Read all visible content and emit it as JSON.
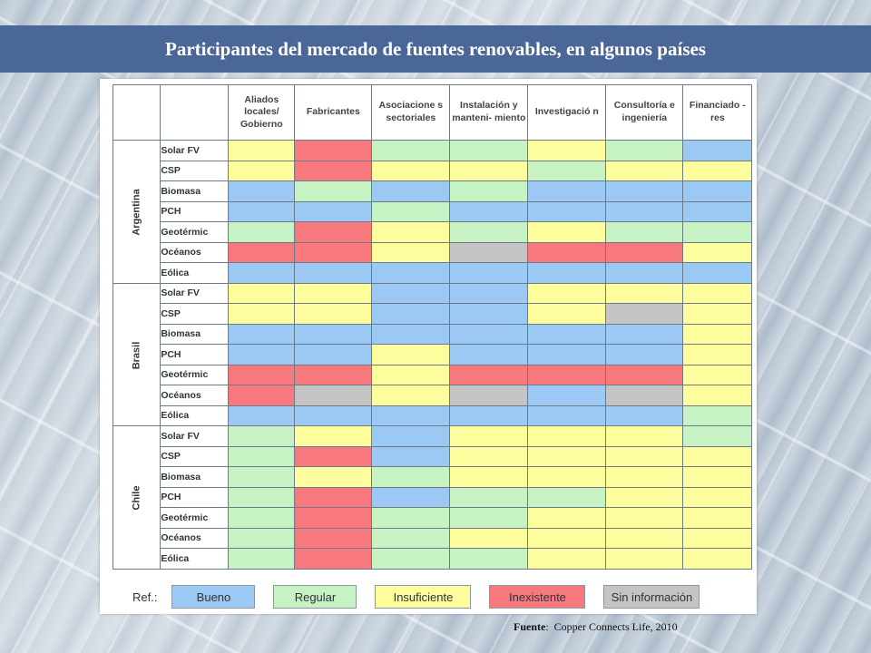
{
  "title": "Participantes del mercado de fuentes renovables, en algunos países",
  "columns": [
    "Aliados locales/ Gobierno",
    "Fabricantes",
    "Asociacione s sectoriales",
    "Instalación y manteni- miento",
    "Investigació n",
    "Consultoría e ingeniería",
    "Financiado -res"
  ],
  "status_colors": {
    "Bueno": "#9cc8f4",
    "Regular": "#c6f2c4",
    "Insuficiente": "#fdfd9e",
    "Inexistente": "#f7797e",
    "Sin información": "#c4c4c4"
  },
  "countries": [
    {
      "name": "Argentina",
      "rows": [
        {
          "tech": "Solar FV",
          "cells": [
            "Insuficiente",
            "Inexistente",
            "Regular",
            "Regular",
            "Insuficiente",
            "Regular",
            "Bueno"
          ]
        },
        {
          "tech": "CSP",
          "cells": [
            "Insuficiente",
            "Inexistente",
            "Insuficiente",
            "Insuficiente",
            "Regular",
            "Insuficiente",
            "Insuficiente"
          ]
        },
        {
          "tech": "Biomasa",
          "cells": [
            "Bueno",
            "Regular",
            "Bueno",
            "Regular",
            "Bueno",
            "Bueno",
            "Bueno"
          ]
        },
        {
          "tech": "PCH",
          "cells": [
            "Bueno",
            "Bueno",
            "Regular",
            "Bueno",
            "Bueno",
            "Bueno",
            "Bueno"
          ]
        },
        {
          "tech": "Geotérmic",
          "cells": [
            "Regular",
            "Inexistente",
            "Insuficiente",
            "Regular",
            "Insuficiente",
            "Regular",
            "Regular"
          ]
        },
        {
          "tech": "Océanos",
          "cells": [
            "Inexistente",
            "Inexistente",
            "Insuficiente",
            "Sin información",
            "Inexistente",
            "Inexistente",
            "Insuficiente"
          ]
        },
        {
          "tech": "Eólica",
          "cells": [
            "Bueno",
            "Bueno",
            "Bueno",
            "Bueno",
            "Bueno",
            "Bueno",
            "Bueno"
          ]
        }
      ]
    },
    {
      "name": "Brasil",
      "rows": [
        {
          "tech": "Solar FV",
          "cells": [
            "Insuficiente",
            "Insuficiente",
            "Bueno",
            "Bueno",
            "Insuficiente",
            "Insuficiente",
            "Insuficiente"
          ]
        },
        {
          "tech": "CSP",
          "cells": [
            "Insuficiente",
            "Insuficiente",
            "Bueno",
            "Bueno",
            "Insuficiente",
            "Sin información",
            "Insuficiente"
          ]
        },
        {
          "tech": "Biomasa",
          "cells": [
            "Bueno",
            "Bueno",
            "Bueno",
            "Bueno",
            "Bueno",
            "Bueno",
            "Insuficiente"
          ]
        },
        {
          "tech": "PCH",
          "cells": [
            "Bueno",
            "Bueno",
            "Insuficiente",
            "Bueno",
            "Bueno",
            "Bueno",
            "Insuficiente"
          ]
        },
        {
          "tech": "Geotérmic",
          "cells": [
            "Inexistente",
            "Inexistente",
            "Insuficiente",
            "Inexistente",
            "Inexistente",
            "Inexistente",
            "Insuficiente"
          ]
        },
        {
          "tech": "Océanos",
          "cells": [
            "Inexistente",
            "Sin información",
            "Insuficiente",
            "Sin información",
            "Bueno",
            "Sin información",
            "Insuficiente"
          ]
        },
        {
          "tech": "Eólica",
          "cells": [
            "Bueno",
            "Bueno",
            "Bueno",
            "Bueno",
            "Bueno",
            "Bueno",
            "Regular"
          ]
        }
      ]
    },
    {
      "name": "Chile",
      "rows": [
        {
          "tech": "Solar FV",
          "cells": [
            "Regular",
            "Insuficiente",
            "Bueno",
            "Insuficiente",
            "Insuficiente",
            "Insuficiente",
            "Regular"
          ]
        },
        {
          "tech": "CSP",
          "cells": [
            "Regular",
            "Inexistente",
            "Bueno",
            "Insuficiente",
            "Insuficiente",
            "Insuficiente",
            "Insuficiente"
          ]
        },
        {
          "tech": "Biomasa",
          "cells": [
            "Regular",
            "Insuficiente",
            "Regular",
            "Insuficiente",
            "Insuficiente",
            "Insuficiente",
            "Insuficiente"
          ]
        },
        {
          "tech": "PCH",
          "cells": [
            "Regular",
            "Inexistente",
            "Bueno",
            "Regular",
            "Regular",
            "Insuficiente",
            "Insuficiente"
          ]
        },
        {
          "tech": "Geotérmic",
          "cells": [
            "Regular",
            "Inexistente",
            "Regular",
            "Regular",
            "Insuficiente",
            "Insuficiente",
            "Insuficiente"
          ]
        },
        {
          "tech": "Océanos",
          "cells": [
            "Regular",
            "Inexistente",
            "Regular",
            "Insuficiente",
            "Insuficiente",
            "Insuficiente",
            "Insuficiente"
          ]
        },
        {
          "tech": "Eólica",
          "cells": [
            "Regular",
            "Inexistente",
            "Regular",
            "Regular",
            "Insuficiente",
            "Insuficiente",
            "Insuficiente"
          ]
        }
      ]
    }
  ],
  "legend": {
    "label": "Ref.:",
    "items": [
      "Bueno",
      "Regular",
      "Insuficiente",
      "Inexistente",
      "Sin información"
    ]
  },
  "source": {
    "label": "Fuente",
    "text": "Copper Connects Life, 2010"
  }
}
